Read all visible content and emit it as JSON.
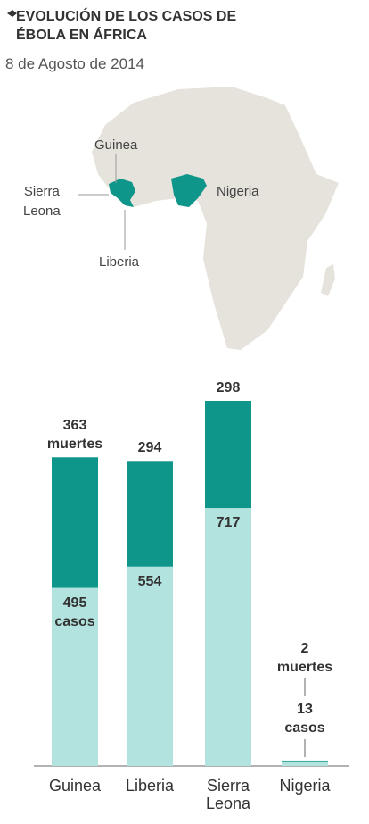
{
  "header": {
    "title": "EVOLUCIÓN DE LOS CASOS DE ÉBOLA EN ÁFRICA",
    "subtitle": "8 de Agosto de 2014"
  },
  "map": {
    "labels": [
      "Guinea",
      "Sierra\nLeona",
      "Liberia",
      "Nigeria"
    ]
  },
  "chart_data": {
    "type": "stacked_bar",
    "categories": [
      "Guinea",
      "Liberia",
      "Sierra\nLeona",
      "Nigeria"
    ],
    "series": [
      {
        "color": "#b3e3df",
        "values": [
          495,
          554,
          717,
          13
        ],
        "value_labels": [
          "495\ncasos",
          "554",
          "717",
          "13\ncasos"
        ]
      },
      {
        "color": "#0e968a",
        "values": [
          363,
          294,
          298,
          2
        ],
        "value_labels": [
          "363\nmuertes",
          "294",
          "298",
          "2\nmuertes"
        ]
      }
    ]
  }
}
